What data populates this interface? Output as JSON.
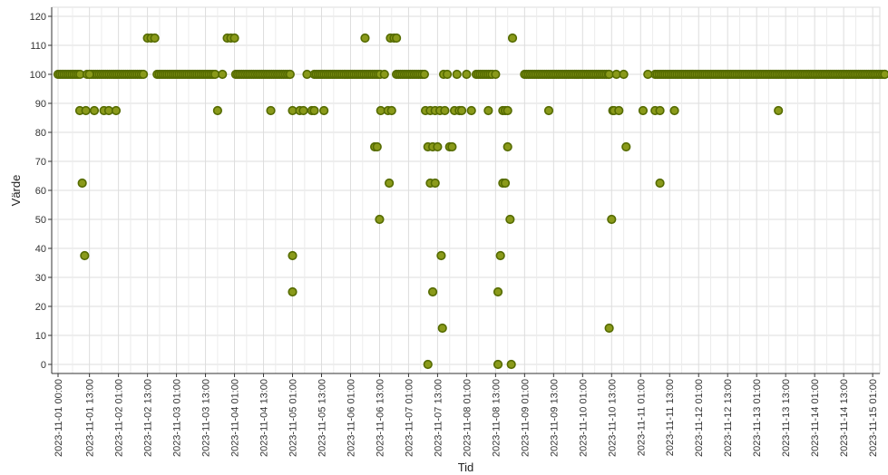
{
  "chart_data": {
    "type": "scatter",
    "xlabel": "Tid",
    "ylabel": "Värde",
    "ylim": [
      0,
      120
    ],
    "y_ticks": [
      0,
      10,
      20,
      30,
      40,
      50,
      60,
      70,
      80,
      90,
      100,
      110,
      120
    ],
    "xlim": [
      "2023-11-01 00:00",
      "2023-11-15 06:00"
    ],
    "x_tick_labels": [
      "2023-11-01 00:00",
      "2023-11-01 13:00",
      "2023-11-02 01:00",
      "2023-11-02 13:00",
      "2023-11-03 01:00",
      "2023-11-03 13:00",
      "2023-11-04 01:00",
      "2023-11-04 13:00",
      "2023-11-05 01:00",
      "2023-11-05 13:00",
      "2023-11-06 01:00",
      "2023-11-06 13:00",
      "2023-11-07 01:00",
      "2023-11-07 13:00",
      "2023-11-08 01:00",
      "2023-11-08 13:00",
      "2023-11-09 01:00",
      "2023-11-09 13:00",
      "2023-11-10 01:00",
      "2023-11-10 13:00",
      "2023-11-11 01:00",
      "2023-11-11 13:00",
      "2023-11-12 01:00",
      "2023-11-12 13:00",
      "2023-11-13 01:00",
      "2023-11-13 13:00",
      "2023-11-14 01:00",
      "2023-11-14 13:00",
      "2023-11-15 01:00"
    ],
    "grid": true,
    "legend": "none",
    "colors": {
      "marker_fill": "#8a9a1a",
      "marker_edge": "#556b00",
      "grid": "#dddddd",
      "axis": "#333333"
    },
    "baseline": {
      "y": 100,
      "ranges": [
        [
          "2023-11-01 00:00",
          "2023-11-01 09:30"
        ],
        [
          "2023-11-01 13:00",
          "2023-11-02 11:30"
        ],
        [
          "2023-11-02 17:00",
          "2023-11-03 17:30"
        ],
        [
          "2023-11-04 01:30",
          "2023-11-05 00:30"
        ],
        [
          "2023-11-05 10:00",
          "2023-11-06 14:00"
        ],
        [
          "2023-11-06 20:00",
          "2023-11-07 08:00"
        ],
        [
          "2023-11-08 05:00",
          "2023-11-08 12:00"
        ],
        [
          "2023-11-09 01:00",
          "2023-11-10 12:00"
        ],
        [
          "2023-11-11 07:00",
          "2023-11-15 06:00"
        ]
      ]
    },
    "points": [
      {
        "x": "2023-11-01 09:00",
        "y": 87.5
      },
      {
        "x": "2023-11-01 10:00",
        "y": 62.5
      },
      {
        "x": "2023-11-01 11:00",
        "y": 37.5
      },
      {
        "x": "2023-11-01 11:30",
        "y": 87.5
      },
      {
        "x": "2023-11-01 12:00",
        "y": 100
      },
      {
        "x": "2023-11-01 13:00",
        "y": 100
      },
      {
        "x": "2023-11-01 15:00",
        "y": 87.5
      },
      {
        "x": "2023-11-01 19:00",
        "y": 87.5
      },
      {
        "x": "2023-11-01 21:00",
        "y": 87.5
      },
      {
        "x": "2023-11-02 00:00",
        "y": 87.5
      },
      {
        "x": "2023-11-02 13:00",
        "y": 112.5
      },
      {
        "x": "2023-11-02 14:30",
        "y": 112.5
      },
      {
        "x": "2023-11-02 16:00",
        "y": 112.5
      },
      {
        "x": "2023-11-03 18:00",
        "y": 87.5
      },
      {
        "x": "2023-11-03 20:00",
        "y": 100
      },
      {
        "x": "2023-11-03 22:00",
        "y": 112.5
      },
      {
        "x": "2023-11-03 23:30",
        "y": 112.5
      },
      {
        "x": "2023-11-04 01:00",
        "y": 112.5
      },
      {
        "x": "2023-11-04 16:00",
        "y": 87.5
      },
      {
        "x": "2023-11-05 00:00",
        "y": 100
      },
      {
        "x": "2023-11-05 01:00",
        "y": 37.5
      },
      {
        "x": "2023-11-05 01:00",
        "y": 25
      },
      {
        "x": "2023-11-05 01:00",
        "y": 87.5
      },
      {
        "x": "2023-11-05 04:00",
        "y": 87.5
      },
      {
        "x": "2023-11-05 05:30",
        "y": 87.5
      },
      {
        "x": "2023-11-05 07:00",
        "y": 100
      },
      {
        "x": "2023-11-05 09:00",
        "y": 87.5
      },
      {
        "x": "2023-11-05 10:00",
        "y": 87.5
      },
      {
        "x": "2023-11-05 14:00",
        "y": 87.5
      },
      {
        "x": "2023-11-06 07:00",
        "y": 112.5
      },
      {
        "x": "2023-11-06 11:00",
        "y": 75
      },
      {
        "x": "2023-11-06 12:00",
        "y": 75
      },
      {
        "x": "2023-11-06 13:00",
        "y": 50
      },
      {
        "x": "2023-11-06 13:30",
        "y": 87.5
      },
      {
        "x": "2023-11-06 15:00",
        "y": 100
      },
      {
        "x": "2023-11-06 16:30",
        "y": 87.5
      },
      {
        "x": "2023-11-06 17:00",
        "y": 62.5
      },
      {
        "x": "2023-11-06 18:00",
        "y": 87.5
      },
      {
        "x": "2023-11-06 17:30",
        "y": 112.5
      },
      {
        "x": "2023-11-06 19:00",
        "y": 112.5
      },
      {
        "x": "2023-11-06 20:00",
        "y": 112.5
      },
      {
        "x": "2023-11-07 08:00",
        "y": 87.5
      },
      {
        "x": "2023-11-07 09:00",
        "y": 0
      },
      {
        "x": "2023-11-07 09:00",
        "y": 75
      },
      {
        "x": "2023-11-07 10:00",
        "y": 62.5
      },
      {
        "x": "2023-11-07 10:00",
        "y": 87.5
      },
      {
        "x": "2023-11-07 11:00",
        "y": 75
      },
      {
        "x": "2023-11-07 11:00",
        "y": 25
      },
      {
        "x": "2023-11-07 12:00",
        "y": 62.5
      },
      {
        "x": "2023-11-07 12:00",
        "y": 87.5
      },
      {
        "x": "2023-11-07 13:00",
        "y": 75
      },
      {
        "x": "2023-11-07 14:00",
        "y": 87.5
      },
      {
        "x": "2023-11-07 14:30",
        "y": 37.5
      },
      {
        "x": "2023-11-07 15:00",
        "y": 12.5
      },
      {
        "x": "2023-11-07 15:30",
        "y": 100
      },
      {
        "x": "2023-11-07 16:00",
        "y": 87.5
      },
      {
        "x": "2023-11-07 17:00",
        "y": 100
      },
      {
        "x": "2023-11-07 18:00",
        "y": 75
      },
      {
        "x": "2023-11-07 19:00",
        "y": 75
      },
      {
        "x": "2023-11-07 20:00",
        "y": 87.5
      },
      {
        "x": "2023-11-07 21:00",
        "y": 100
      },
      {
        "x": "2023-11-07 22:00",
        "y": 87.5
      },
      {
        "x": "2023-11-07 23:00",
        "y": 87.5
      },
      {
        "x": "2023-11-08 01:00",
        "y": 100
      },
      {
        "x": "2023-11-08 03:00",
        "y": 87.5
      },
      {
        "x": "2023-11-08 10:00",
        "y": 87.5
      },
      {
        "x": "2023-11-08 13:00",
        "y": 100
      },
      {
        "x": "2023-11-08 14:00",
        "y": 25
      },
      {
        "x": "2023-11-08 14:00",
        "y": 0
      },
      {
        "x": "2023-11-08 15:00",
        "y": 37.5
      },
      {
        "x": "2023-11-08 16:00",
        "y": 87.5
      },
      {
        "x": "2023-11-08 16:00",
        "y": 62.5
      },
      {
        "x": "2023-11-08 17:00",
        "y": 62.5
      },
      {
        "x": "2023-11-08 17:00",
        "y": 87.5
      },
      {
        "x": "2023-11-08 18:00",
        "y": 87.5
      },
      {
        "x": "2023-11-08 18:00",
        "y": 75
      },
      {
        "x": "2023-11-08 19:00",
        "y": 50
      },
      {
        "x": "2023-11-08 19:30",
        "y": 0
      },
      {
        "x": "2023-11-08 20:00",
        "y": 112.5
      },
      {
        "x": "2023-11-09 11:00",
        "y": 87.5
      },
      {
        "x": "2023-11-10 12:00",
        "y": 100
      },
      {
        "x": "2023-11-10 12:00",
        "y": 12.5
      },
      {
        "x": "2023-11-10 13:00",
        "y": 50
      },
      {
        "x": "2023-11-10 13:30",
        "y": 87.5
      },
      {
        "x": "2023-11-10 14:00",
        "y": 87.5
      },
      {
        "x": "2023-11-10 15:00",
        "y": 100
      },
      {
        "x": "2023-11-10 16:00",
        "y": 87.5
      },
      {
        "x": "2023-11-10 18:00",
        "y": 100
      },
      {
        "x": "2023-11-10 19:00",
        "y": 75
      },
      {
        "x": "2023-11-11 02:00",
        "y": 87.5
      },
      {
        "x": "2023-11-11 04:00",
        "y": 100
      },
      {
        "x": "2023-11-11 07:00",
        "y": 87.5
      },
      {
        "x": "2023-11-11 09:00",
        "y": 87.5
      },
      {
        "x": "2023-11-11 09:00",
        "y": 62.5
      },
      {
        "x": "2023-11-11 15:00",
        "y": 87.5
      },
      {
        "x": "2023-11-13 10:00",
        "y": 87.5
      },
      {
        "x": "2023-11-15 06:00",
        "y": 100
      }
    ]
  }
}
